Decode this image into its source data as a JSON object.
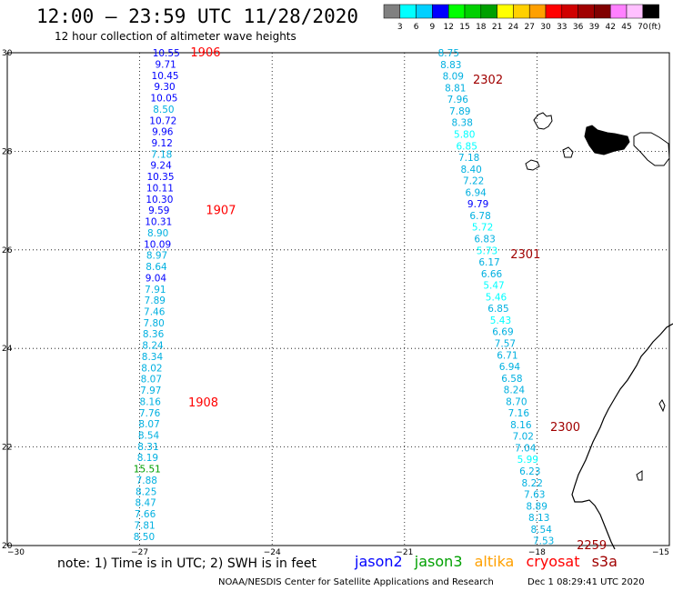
{
  "header": {
    "title": "12:00 – 23:59 UTC 11/28/2020",
    "subtitle": "12 hour collection of altimeter wave heights"
  },
  "legend": {
    "unit": "(ft)",
    "colors": [
      "#808080",
      "#00ffff",
      "#00d0ff",
      "#0000ff",
      "#00ff00",
      "#00d000",
      "#00a000",
      "#ffff00",
      "#ffd000",
      "#ffa000",
      "#ff0000",
      "#d00000",
      "#a00000",
      "#800000",
      "#ff80ff",
      "#ffc0ff",
      "#000000"
    ],
    "labels": [
      "3",
      "6",
      "9",
      "12",
      "15",
      "18",
      "21",
      "24",
      "27",
      "30",
      "33",
      "36",
      "39",
      "42",
      "45",
      "70"
    ]
  },
  "axes": {
    "lat_labels": [
      "30",
      "28",
      "26",
      "24",
      "22",
      "20"
    ],
    "lon_labels": [
      "−30",
      "−27",
      "−24",
      "−21",
      "−18",
      "−15"
    ]
  },
  "pass_labels": [
    {
      "text": "1906",
      "lon": -25.85,
      "lat": 30.0
    },
    {
      "text": "1907",
      "lon": -25.5,
      "lat": 26.8
    },
    {
      "text": "1908",
      "lon": -25.9,
      "lat": 22.9
    },
    {
      "text": "2302",
      "lon": -19.45,
      "lat": 29.45
    },
    {
      "text": "2301",
      "lon": -18.6,
      "lat": 25.9
    },
    {
      "text": "2300",
      "lon": -17.7,
      "lat": 22.4
    },
    {
      "text": "2259",
      "lon": -17.1,
      "lat": 20.0
    }
  ],
  "track_1": [
    {
      "v": "10.55",
      "c": "#0000ff"
    },
    {
      "v": "9.71",
      "c": "#0000ff"
    },
    {
      "v": "10.45",
      "c": "#0000ff"
    },
    {
      "v": "9.30",
      "c": "#0000ff"
    },
    {
      "v": "10.05",
      "c": "#0000ff"
    },
    {
      "v": "8.50",
      "c": "#00b0e0"
    },
    {
      "v": "10.72",
      "c": "#0000ff"
    },
    {
      "v": "9.96",
      "c": "#0000ff"
    },
    {
      "v": "9.12",
      "c": "#0000ff"
    },
    {
      "v": "7.18",
      "c": "#00b0e0"
    },
    {
      "v": "9.24",
      "c": "#0000ff"
    },
    {
      "v": "10.35",
      "c": "#0000ff"
    },
    {
      "v": "10.11",
      "c": "#0000ff"
    },
    {
      "v": "10.30",
      "c": "#0000ff"
    },
    {
      "v": "9.59",
      "c": "#0000ff"
    },
    {
      "v": "10.31",
      "c": "#0000ff"
    },
    {
      "v": "8.90",
      "c": "#00b0e0"
    },
    {
      "v": "10.09",
      "c": "#0000ff"
    },
    {
      "v": "8.97",
      "c": "#00b0e0"
    },
    {
      "v": "8.64",
      "c": "#00b0e0"
    },
    {
      "v": "9.04",
      "c": "#0000ff"
    },
    {
      "v": "7.91",
      "c": "#00b0e0"
    },
    {
      "v": "7.89",
      "c": "#00b0e0"
    },
    {
      "v": "7.46",
      "c": "#00b0e0"
    },
    {
      "v": "7.80",
      "c": "#00b0e0"
    },
    {
      "v": "8.36",
      "c": "#00b0e0"
    },
    {
      "v": "8.24",
      "c": "#00b0e0"
    },
    {
      "v": "8.34",
      "c": "#00b0e0"
    },
    {
      "v": "8.02",
      "c": "#00b0e0"
    },
    {
      "v": "8.07",
      "c": "#00b0e0"
    },
    {
      "v": "7.97",
      "c": "#00b0e0"
    },
    {
      "v": "8.16",
      "c": "#00b0e0"
    },
    {
      "v": "7.76",
      "c": "#00b0e0"
    },
    {
      "v": "8.07",
      "c": "#00b0e0"
    },
    {
      "v": "8.54",
      "c": "#00b0e0"
    },
    {
      "v": "8.31",
      "c": "#00b0e0"
    },
    {
      "v": "8.19",
      "c": "#00b0e0"
    },
    {
      "v": "15.51",
      "c": "#00a000"
    },
    {
      "v": "7.88",
      "c": "#00b0e0"
    },
    {
      "v": "8.25",
      "c": "#00b0e0"
    },
    {
      "v": "8.47",
      "c": "#00b0e0"
    },
    {
      "v": "7.66",
      "c": "#00b0e0"
    },
    {
      "v": "7.81",
      "c": "#00b0e0"
    },
    {
      "v": "8.50",
      "c": "#00b0e0"
    }
  ],
  "track_2": [
    {
      "v": "8.75",
      "c": "#00b0e0"
    },
    {
      "v": "8.83",
      "c": "#00b0e0"
    },
    {
      "v": "8.09",
      "c": "#00b0e0"
    },
    {
      "v": "8.81",
      "c": "#00b0e0"
    },
    {
      "v": "7.96",
      "c": "#00b0e0"
    },
    {
      "v": "7.89",
      "c": "#00b0e0"
    },
    {
      "v": "8.38",
      "c": "#00b0e0"
    },
    {
      "v": "5.80",
      "c": "#00ffff"
    },
    {
      "v": "6.85",
      "c": "#00ffff"
    },
    {
      "v": "7.18",
      "c": "#00b0e0"
    },
    {
      "v": "8.40",
      "c": "#00b0e0"
    },
    {
      "v": "7.22",
      "c": "#00b0e0"
    },
    {
      "v": "6.94",
      "c": "#00b0e0"
    },
    {
      "v": "9.79",
      "c": "#0000ff"
    },
    {
      "v": "6.78",
      "c": "#00b0e0"
    },
    {
      "v": "5.72",
      "c": "#00ffff"
    },
    {
      "v": "6.83",
      "c": "#00b0e0"
    },
    {
      "v": "5.73",
      "c": "#00ffff"
    },
    {
      "v": "6.17",
      "c": "#00b0e0"
    },
    {
      "v": "6.66",
      "c": "#00b0e0"
    },
    {
      "v": "5.47",
      "c": "#00ffff"
    },
    {
      "v": "5.46",
      "c": "#00ffff"
    },
    {
      "v": "6.85",
      "c": "#00b0e0"
    },
    {
      "v": "5.43",
      "c": "#00ffff"
    },
    {
      "v": "6.69",
      "c": "#00b0e0"
    },
    {
      "v": "7.57",
      "c": "#00b0e0"
    },
    {
      "v": "6.71",
      "c": "#00b0e0"
    },
    {
      "v": "6.94",
      "c": "#00b0e0"
    },
    {
      "v": "6.58",
      "c": "#00b0e0"
    },
    {
      "v": "8.24",
      "c": "#00b0e0"
    },
    {
      "v": "8.70",
      "c": "#00b0e0"
    },
    {
      "v": "7.16",
      "c": "#00b0e0"
    },
    {
      "v": "8.16",
      "c": "#00b0e0"
    },
    {
      "v": "7.02",
      "c": "#00b0e0"
    },
    {
      "v": "7.04",
      "c": "#00b0e0"
    },
    {
      "v": "5.99",
      "c": "#00ffff"
    },
    {
      "v": "6.23",
      "c": "#00b0e0"
    },
    {
      "v": "8.22",
      "c": "#00b0e0"
    },
    {
      "v": "7.63",
      "c": "#00b0e0"
    },
    {
      "v": "8.89",
      "c": "#00b0e0"
    },
    {
      "v": "8.13",
      "c": "#00b0e0"
    },
    {
      "v": "8.54",
      "c": "#00b0e0"
    },
    {
      "v": "7.53",
      "c": "#00b0e0"
    }
  ],
  "footer": {
    "note": "note:  1) Time is in UTC;  2) SWH is in feet",
    "satellites": [
      {
        "name": "jason2",
        "color": "#0000ff"
      },
      {
        "name": "jason3",
        "color": "#00a000"
      },
      {
        "name": "altika",
        "color": "#ffa000"
      },
      {
        "name": "cryosat",
        "color": "#ff0000"
      },
      {
        "name": "s3a",
        "color": "#a00000"
      }
    ],
    "credit": "NOAA/NESDIS Center for Satellite Applications and Research",
    "timestamp": "Dec  1 08:29:41 UTC 2020"
  }
}
